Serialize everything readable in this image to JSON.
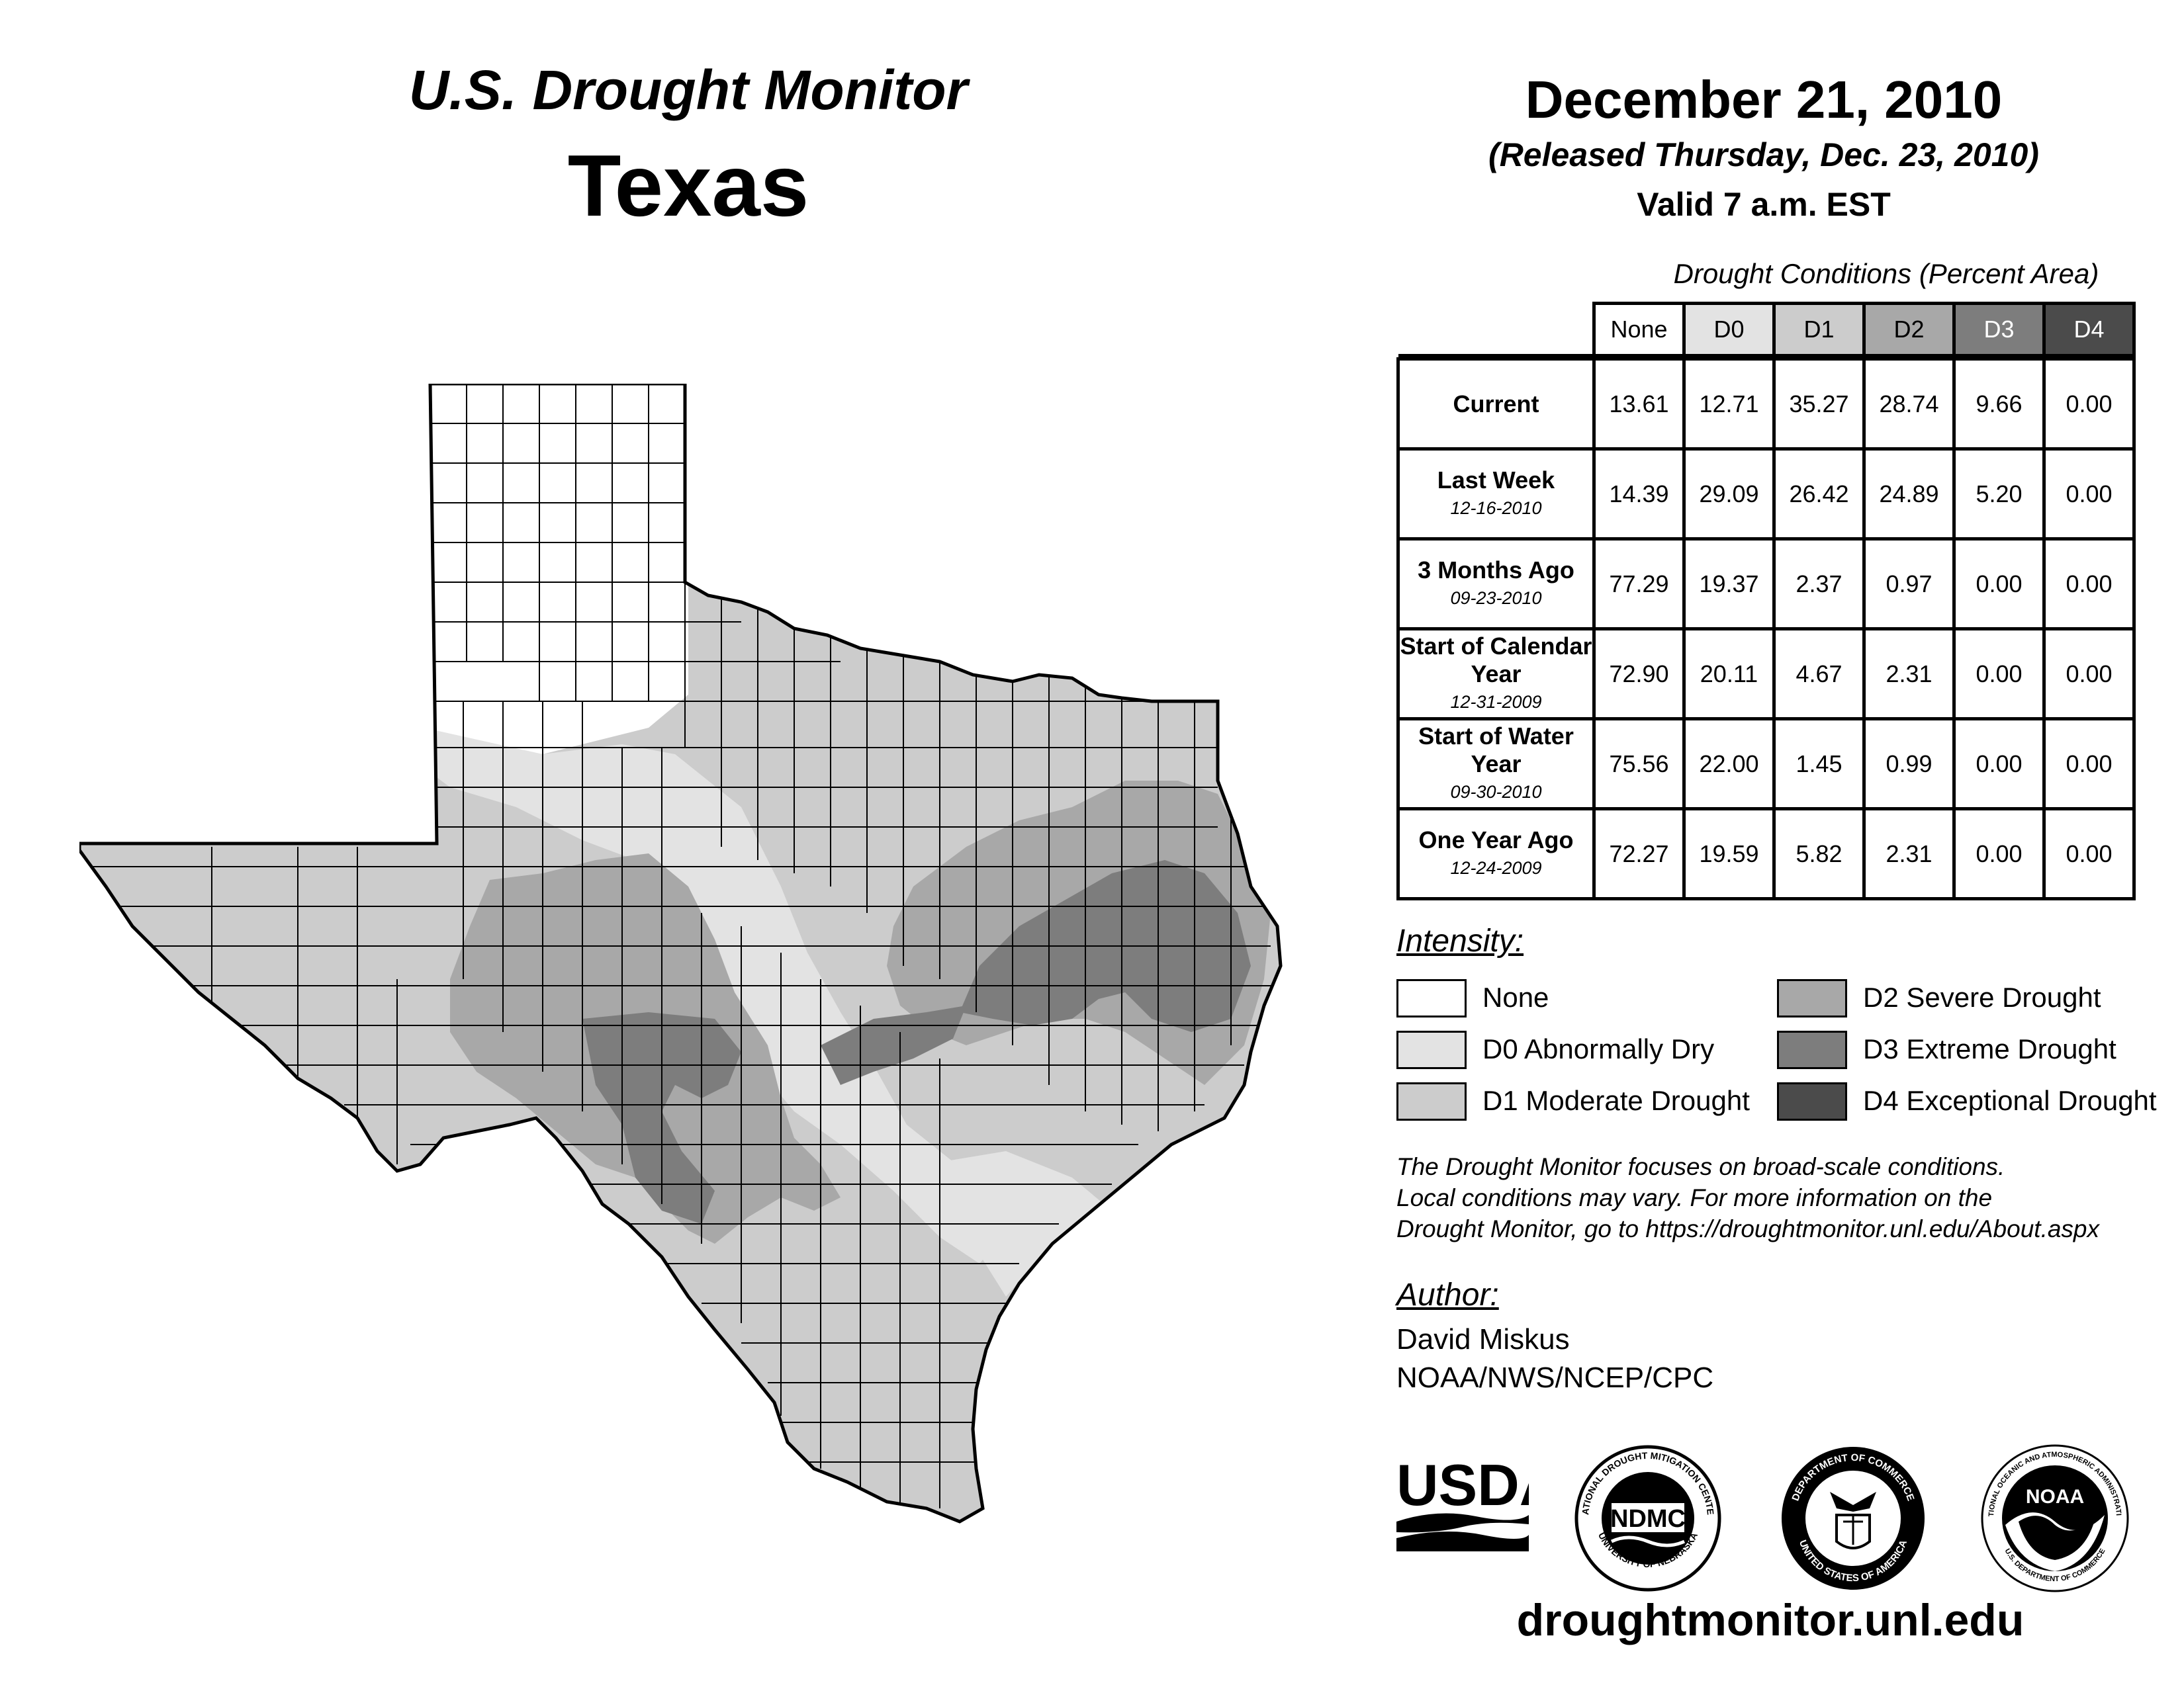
{
  "header": {
    "brand": "U.S. Drought Monitor",
    "state": "Texas",
    "date": "December 21, 2010",
    "released": "(Released Thursday, Dec. 23, 2010)",
    "valid": "Valid 7 a.m. EST"
  },
  "table": {
    "caption": "Drought Conditions (Percent Area)",
    "columns": [
      "None",
      "D0",
      "D1",
      "D2",
      "D3",
      "D4"
    ],
    "column_colors": [
      "#ffffff",
      "#e3e3e3",
      "#cccccc",
      "#a8a8a8",
      "#7d7d7d",
      "#4b4b4b"
    ],
    "column_text_colors": [
      "#000000",
      "#000000",
      "#000000",
      "#000000",
      "#ffffff",
      "#ffffff"
    ],
    "rows": [
      {
        "label": "Current",
        "date": "",
        "values": [
          "13.61",
          "12.71",
          "35.27",
          "28.74",
          "9.66",
          "0.00"
        ]
      },
      {
        "label": "Last Week",
        "date": "12-16-2010",
        "values": [
          "14.39",
          "29.09",
          "26.42",
          "24.89",
          "5.20",
          "0.00"
        ]
      },
      {
        "label": "3 Months Ago",
        "date": "09-23-2010",
        "values": [
          "77.29",
          "19.37",
          "2.37",
          "0.97",
          "0.00",
          "0.00"
        ]
      },
      {
        "label": "Start of Calendar Year",
        "date": "12-31-2009",
        "values": [
          "72.90",
          "20.11",
          "4.67",
          "2.31",
          "0.00",
          "0.00"
        ]
      },
      {
        "label": "Start of Water Year",
        "date": "09-30-2010",
        "values": [
          "75.56",
          "22.00",
          "1.45",
          "0.99",
          "0.00",
          "0.00"
        ]
      },
      {
        "label": "One Year Ago",
        "date": "12-24-2009",
        "values": [
          "72.27",
          "19.59",
          "5.82",
          "2.31",
          "0.00",
          "0.00"
        ]
      }
    ]
  },
  "legend": {
    "title": "Intensity:",
    "items": [
      {
        "label": "None",
        "color": "#ffffff"
      },
      {
        "label": "D0 Abnormally Dry",
        "color": "#e3e3e3"
      },
      {
        "label": "D1 Moderate Drought",
        "color": "#cccccc"
      },
      {
        "label": "D2 Severe Drought",
        "color": "#a8a8a8"
      },
      {
        "label": "D3 Extreme Drought",
        "color": "#7d7d7d"
      },
      {
        "label": "D4 Exceptional Drought",
        "color": "#4b4b4b"
      }
    ]
  },
  "disclaimer": [
    "The Drought Monitor focuses on broad-scale conditions.",
    "Local conditions may vary. For more information on the",
    "Drought Monitor, go to https://droughtmonitor.unl.edu/About.aspx"
  ],
  "author": {
    "title": "Author:",
    "name": "David Miskus",
    "org": "NOAA/NWS/NCEP/CPC"
  },
  "logos": {
    "usda": "USDA",
    "ndmc": "NDMC",
    "ndmc_ring_top": "NATIONAL DROUGHT MITIGATION CENTER",
    "ndmc_ring_bottom": "UNIVERSITY OF NEBRASKA",
    "commerce_ring_top": "DEPARTMENT OF COMMERCE",
    "commerce_ring_bottom": "UNITED STATES OF AMERICA",
    "noaa": "NOAA",
    "noaa_ring_top": "NATIONAL OCEANIC AND ATMOSPHERIC ADMINISTRATION",
    "noaa_ring_bottom": "U.S. DEPARTMENT OF COMMERCE"
  },
  "website": "droughtmonitor.unl.edu"
}
